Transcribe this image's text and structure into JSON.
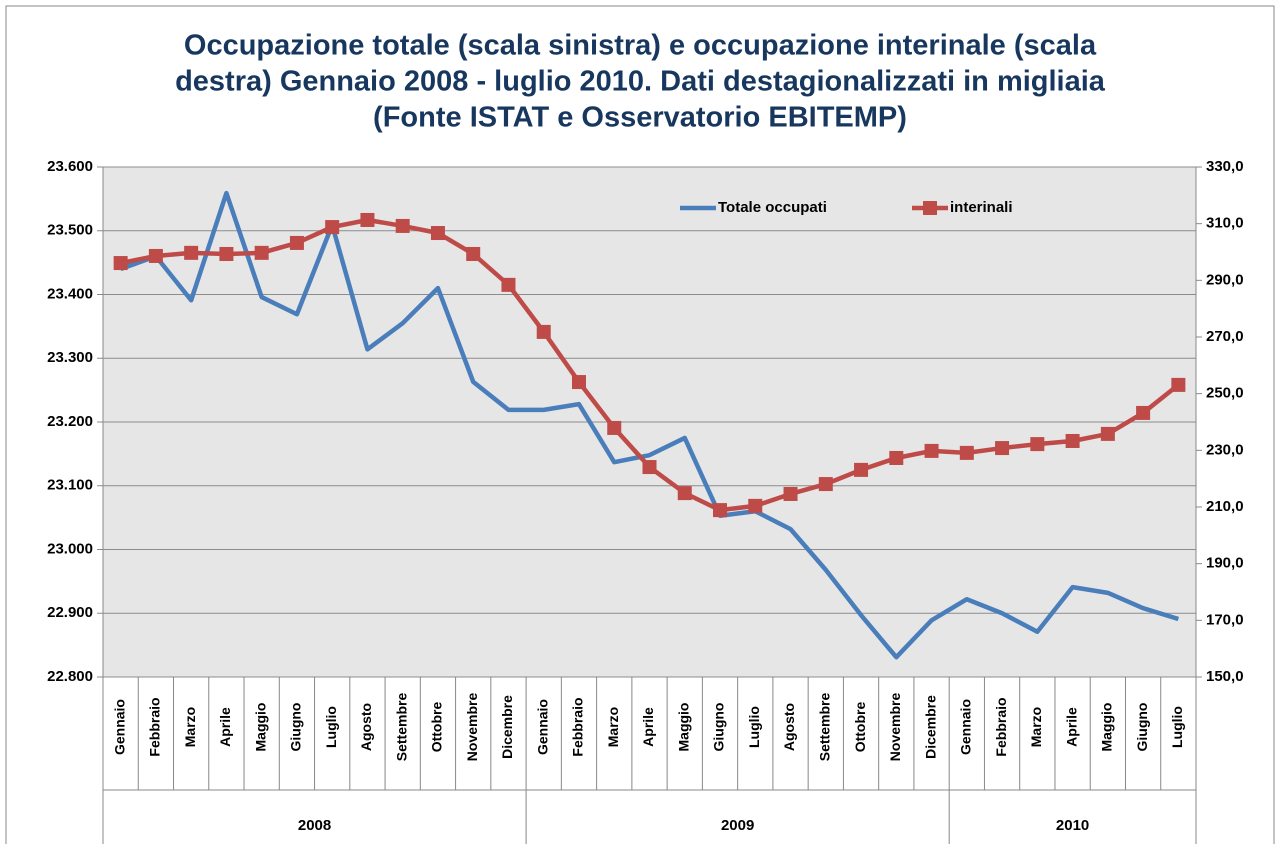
{
  "chart_data": {
    "type": "line",
    "title": [
      "Occupazione totale (scala sinistra) e occupazione interinale (scala",
      "destra) Gennaio 2008 -  luglio 2010. Dati destagionalizzati in migliaia",
      "(Fonte ISTAT e Osservatorio  EBITEMP)"
    ],
    "groups": [
      {
        "name": "2008",
        "categories": [
          "Gennaio",
          "Febbraio",
          "Marzo",
          "Aprile",
          "Maggio",
          "Giugno",
          "Luglio",
          "Agosto",
          "Settembre",
          "Ottobre",
          "Novembre",
          "Dicembre"
        ]
      },
      {
        "name": "2009",
        "categories": [
          "Gennaio",
          "Febbraio",
          "Marzo",
          "Aprile",
          "Maggio",
          "Giugno",
          "Luglio",
          "Agosto",
          "Settembre",
          "Ottobre",
          "Novembre",
          "Dicembre"
        ]
      },
      {
        "name": "2010",
        "categories": [
          "Gennaio",
          "Febbraio",
          "Marzo",
          "Aprile",
          "Maggio",
          "Giugno",
          "Luglio"
        ]
      }
    ],
    "series": [
      {
        "name": "Totale occupati",
        "color": "#4a7ebb",
        "axis": "y",
        "marker": "none",
        "values": [
          23440,
          23460,
          23391,
          23559,
          23396,
          23369,
          23509,
          23314,
          23355,
          23410,
          23263,
          23219,
          23219,
          23228,
          23137,
          23148,
          23175,
          23053,
          23060,
          23032,
          22968,
          22897,
          22831,
          22889,
          22922,
          22900,
          22871,
          22941,
          22932,
          22908,
          22891
        ]
      },
      {
        "name": "interinali",
        "color": "#be4b48",
        "axis": "y2",
        "marker": "square",
        "values": [
          296.1,
          298.6,
          299.7,
          299.3,
          299.7,
          303.2,
          308.8,
          311.3,
          309.2,
          306.7,
          299.3,
          288.4,
          271.8,
          254.1,
          237.9,
          224.1,
          214.9,
          208.9,
          210.4,
          214.6,
          218.1,
          223.1,
          227.3,
          229.8,
          229.1,
          230.8,
          232.2,
          233.3,
          235.8,
          243.2,
          253.1
        ]
      }
    ],
    "ylim": [
      22800,
      23600
    ],
    "yticks": [
      {
        "value": 22800,
        "label": "22.800"
      },
      {
        "value": 22900,
        "label": "22.900"
      },
      {
        "value": 23000,
        "label": "23.000"
      },
      {
        "value": 23100,
        "label": "23.100"
      },
      {
        "value": 23200,
        "label": "23.200"
      },
      {
        "value": 23300,
        "label": "23.300"
      },
      {
        "value": 23400,
        "label": "23.400"
      },
      {
        "value": 23500,
        "label": "23.500"
      },
      {
        "value": 23600,
        "label": "23.600"
      }
    ],
    "y2lim": [
      150,
      330
    ],
    "y2ticks": [
      {
        "value": 150,
        "label": "150,0"
      },
      {
        "value": 170,
        "label": "170,0"
      },
      {
        "value": 190,
        "label": "190,0"
      },
      {
        "value": 210,
        "label": "210,0"
      },
      {
        "value": 230,
        "label": "230,0"
      },
      {
        "value": 250,
        "label": "250,0"
      },
      {
        "value": 270,
        "label": "270,0"
      },
      {
        "value": 290,
        "label": "290,0"
      },
      {
        "value": 310,
        "label": "310,0"
      },
      {
        "value": 330,
        "label": "330,0"
      }
    ],
    "grid": true,
    "legend": "top-right"
  }
}
